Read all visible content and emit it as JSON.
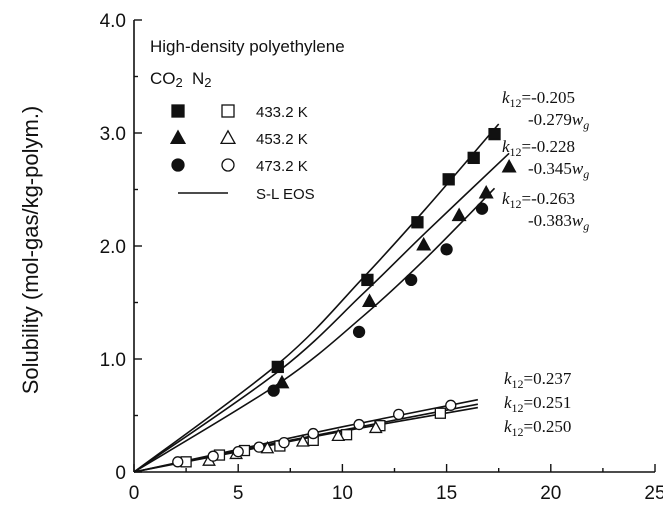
{
  "chart_data": {
    "type": "scatter",
    "title": "High-density polyethylene",
    "ylabel": "Solubility (mol-gas/kg-polym.)",
    "xlabel": "",
    "xlim": [
      0,
      25
    ],
    "ylim": [
      0,
      4.0
    ],
    "xticks": [
      0,
      5,
      10,
      15,
      20,
      25
    ],
    "yticks": [
      0,
      1.0,
      2.0,
      3.0,
      4.0
    ],
    "xtick_labels": [
      "0",
      "5",
      "10",
      "15",
      "20",
      "25"
    ],
    "ytick_labels": [
      "0",
      "1.0",
      "2.0",
      "3.0",
      "4.0"
    ],
    "legend": {
      "placement": "top-left",
      "col_co2": "CO2",
      "col_n2": "N2",
      "rows": [
        {
          "label": "433.2 K",
          "marker": "square"
        },
        {
          "label": "453.2 K",
          "marker": "triangle"
        },
        {
          "label": "473.2 K",
          "marker": "circle"
        }
      ],
      "line_label": "S-L EOS"
    },
    "series": [
      {
        "gas": "CO2",
        "temperature": "433.2 K",
        "marker": "square",
        "filled": true,
        "x": [
          6.9,
          11.2,
          13.6,
          15.1,
          16.3,
          17.3
        ],
        "y": [
          0.93,
          1.7,
          2.21,
          2.59,
          2.78,
          2.99
        ]
      },
      {
        "gas": "CO2",
        "temperature": "453.2 K",
        "marker": "triangle",
        "filled": true,
        "x": [
          7.1,
          11.3,
          13.9,
          15.6,
          16.9,
          18.0
        ],
        "y": [
          0.79,
          1.51,
          2.01,
          2.27,
          2.47,
          2.7
        ]
      },
      {
        "gas": "CO2",
        "temperature": "473.2 K",
        "marker": "circle",
        "filled": true,
        "x": [
          6.7,
          10.8,
          13.3,
          15.0,
          16.7
        ],
        "y": [
          0.72,
          1.24,
          1.7,
          1.97,
          2.33
        ]
      },
      {
        "gas": "N2",
        "temperature": "433.2 K",
        "marker": "square",
        "filled": false,
        "x": [
          2.5,
          4.1,
          5.3,
          7.0,
          8.6,
          10.2,
          11.8,
          14.7
        ],
        "y": [
          0.09,
          0.15,
          0.19,
          0.23,
          0.28,
          0.33,
          0.41,
          0.52
        ]
      },
      {
        "gas": "N2",
        "temperature": "453.2 K",
        "marker": "triangle",
        "filled": false,
        "x": [
          3.6,
          4.9,
          6.4,
          8.1,
          9.8,
          11.6
        ],
        "y": [
          0.1,
          0.16,
          0.21,
          0.27,
          0.32,
          0.39
        ]
      },
      {
        "gas": "N2",
        "temperature": "473.2 K",
        "marker": "circle",
        "filled": false,
        "x": [
          2.1,
          3.8,
          5.0,
          6.0,
          7.2,
          8.6,
          10.8,
          12.7,
          15.2
        ],
        "y": [
          0.09,
          0.14,
          0.18,
          0.22,
          0.26,
          0.34,
          0.42,
          0.51,
          0.59
        ]
      }
    ],
    "fit_lines": [
      {
        "label": "S-L EOS CO2 433.2 K",
        "x": [
          0,
          7,
          11,
          14,
          17.5
        ],
        "y": [
          0,
          0.97,
          1.72,
          2.33,
          3.08
        ]
      },
      {
        "label": "S-L EOS CO2 453.2 K",
        "x": [
          0,
          7,
          11,
          14,
          18.0
        ],
        "y": [
          0,
          0.9,
          1.58,
          2.12,
          2.82
        ]
      },
      {
        "label": "S-L EOS CO2 473.2 K",
        "x": [
          0,
          7,
          11,
          14,
          17.3
        ],
        "y": [
          0,
          0.79,
          1.38,
          1.89,
          2.51
        ]
      },
      {
        "label": "S-L EOS N2 433.2 K",
        "x": [
          0,
          5,
          10,
          16.5
        ],
        "y": [
          0,
          0.19,
          0.37,
          0.6
        ]
      },
      {
        "label": "S-L EOS N2 453.2 K",
        "x": [
          0,
          5,
          10,
          16.5
        ],
        "y": [
          0,
          0.18,
          0.36,
          0.57
        ]
      },
      {
        "label": "S-L EOS N2 473.2 K",
        "x": [
          0,
          5,
          10,
          16.5
        ],
        "y": [
          0,
          0.2,
          0.4,
          0.64
        ]
      }
    ],
    "annotations": {
      "co2": [
        {
          "k": "=-0.205",
          "w": "-0.279"
        },
        {
          "k": "=-0.228",
          "w": "-0.345"
        },
        {
          "k": "=-0.263",
          "w": "-0.383"
        }
      ],
      "n2": [
        {
          "k": "=0.237"
        },
        {
          "k": "=0.251"
        },
        {
          "k": "=0.250"
        }
      ]
    }
  }
}
